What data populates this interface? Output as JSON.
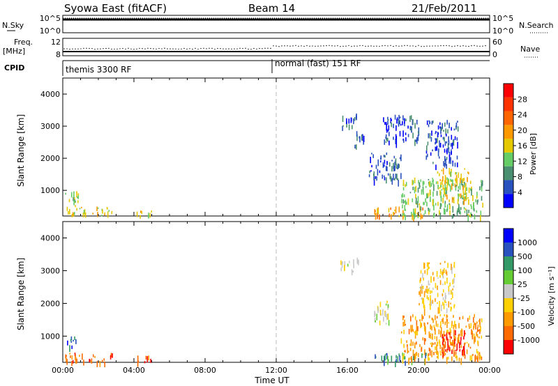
{
  "header": {
    "station": "Syowa East (fitACF)",
    "beam": "Beam 14",
    "date": "21/Feb/2011"
  },
  "panel_labels": {
    "nsky": "N.Sky",
    "nsearch": "N.Search",
    "freq": "Freq.",
    "freq_unit": "[MHz]",
    "nave": "Nave",
    "cpid": "CPID"
  },
  "top_strip": {
    "left_ticks": [
      "10^5",
      "10^0"
    ],
    "right_ticks": [
      "10^5",
      "10^0"
    ],
    "freq_ticks": [
      "12",
      "8"
    ],
    "nave_ticks": [
      "60",
      "0"
    ],
    "cpid_left": "themis 3300 RF",
    "cpid_right": "normal (fast) 151 RF"
  },
  "colors": {
    "power": [
      "#0000ff",
      "#2a52be",
      "#4a9070",
      "#66cc66",
      "#e6c800",
      "#ff9900",
      "#ff6600",
      "#ff3300",
      "#ff0000"
    ],
    "velocity": [
      "#ff0000",
      "#ff6a00",
      "#ff9a00",
      "#ffd000",
      "#c8c8c8",
      "#66cc33",
      "#339966",
      "#2a52be",
      "#0000ff"
    ]
  },
  "chart_data": [
    {
      "type": "heatmap",
      "name": "Power",
      "ylabel": "Slant Range [km]",
      "colorbar_label": "Power [dB]",
      "colorbar_ticks": [
        "4",
        "8",
        "12",
        "16",
        "20",
        "24",
        "28"
      ],
      "xlim": [
        "00:00",
        "24:00"
      ],
      "ylim": [
        200,
        4500
      ],
      "y_ticks": [
        "1000",
        "2000",
        "3000",
        "4000"
      ],
      "regions": [
        {
          "t0": 0.1,
          "t1": 2.8,
          "r0": 220,
          "r1": 500,
          "level": 4
        },
        {
          "t0": 0.1,
          "t1": 0.9,
          "r0": 500,
          "r1": 1000,
          "level": 3
        },
        {
          "t0": 4.1,
          "t1": 5.0,
          "r0": 220,
          "r1": 420,
          "level": 4
        },
        {
          "t0": 15.6,
          "t1": 16.6,
          "r0": 3000,
          "r1": 3400,
          "level": 1
        },
        {
          "t0": 16.3,
          "t1": 16.9,
          "r0": 2400,
          "r1": 2900,
          "level": 1
        },
        {
          "t0": 17.2,
          "t1": 19.0,
          "r0": 1300,
          "r1": 2200,
          "level": 1
        },
        {
          "t0": 17.5,
          "t1": 20.3,
          "r0": 220,
          "r1": 500,
          "level": 5
        },
        {
          "t0": 18.0,
          "t1": 20.0,
          "r0": 2500,
          "r1": 3400,
          "level": 1
        },
        {
          "t0": 19.0,
          "t1": 23.6,
          "r0": 220,
          "r1": 1400,
          "level": 3
        },
        {
          "t0": 21.0,
          "t1": 22.8,
          "r0": 700,
          "r1": 1700,
          "level": 4
        },
        {
          "t0": 20.4,
          "t1": 22.2,
          "r0": 1800,
          "r1": 3200,
          "level": 1
        }
      ]
    },
    {
      "type": "heatmap",
      "name": "Velocity",
      "ylabel": "Slant Range [km]",
      "xlabel": "Time UT",
      "colorbar_label": "Velocity [m s⁻¹]",
      "colorbar_ticks": [
        "1000",
        "500",
        "100",
        "25",
        "-25",
        "-100",
        "-500",
        "-1000"
      ],
      "xlim": [
        "00:00",
        "24:00"
      ],
      "ylim": [
        200,
        4500
      ],
      "y_ticks": [
        "1000",
        "2000",
        "3000",
        "4000"
      ],
      "x_ticks": [
        "00:00",
        "04:00",
        "08:00",
        "12:00",
        "16:00",
        "20:00",
        "00:00"
      ],
      "regions": [
        {
          "t0": 0.1,
          "t1": 2.8,
          "r0": 220,
          "r1": 500,
          "level": 1
        },
        {
          "t0": 0.1,
          "t1": 0.9,
          "r0": 700,
          "r1": 1000,
          "level": 7
        },
        {
          "t0": 4.1,
          "t1": 5.0,
          "r0": 220,
          "r1": 420,
          "level": 1
        },
        {
          "t0": 15.6,
          "t1": 16.6,
          "r0": 3000,
          "r1": 3400,
          "level": 4
        },
        {
          "t0": 17.5,
          "t1": 18.4,
          "r0": 1400,
          "r1": 2100,
          "level": 4
        },
        {
          "t0": 17.5,
          "t1": 20.5,
          "r0": 220,
          "r1": 500,
          "level": 6
        },
        {
          "t0": 19.0,
          "t1": 23.6,
          "r0": 300,
          "r1": 1700,
          "level": 2
        },
        {
          "t0": 21.2,
          "t1": 22.6,
          "r0": 500,
          "r1": 1200,
          "level": 0
        },
        {
          "t0": 20.0,
          "t1": 22.0,
          "r0": 1800,
          "r1": 3300,
          "level": 3
        }
      ]
    }
  ]
}
